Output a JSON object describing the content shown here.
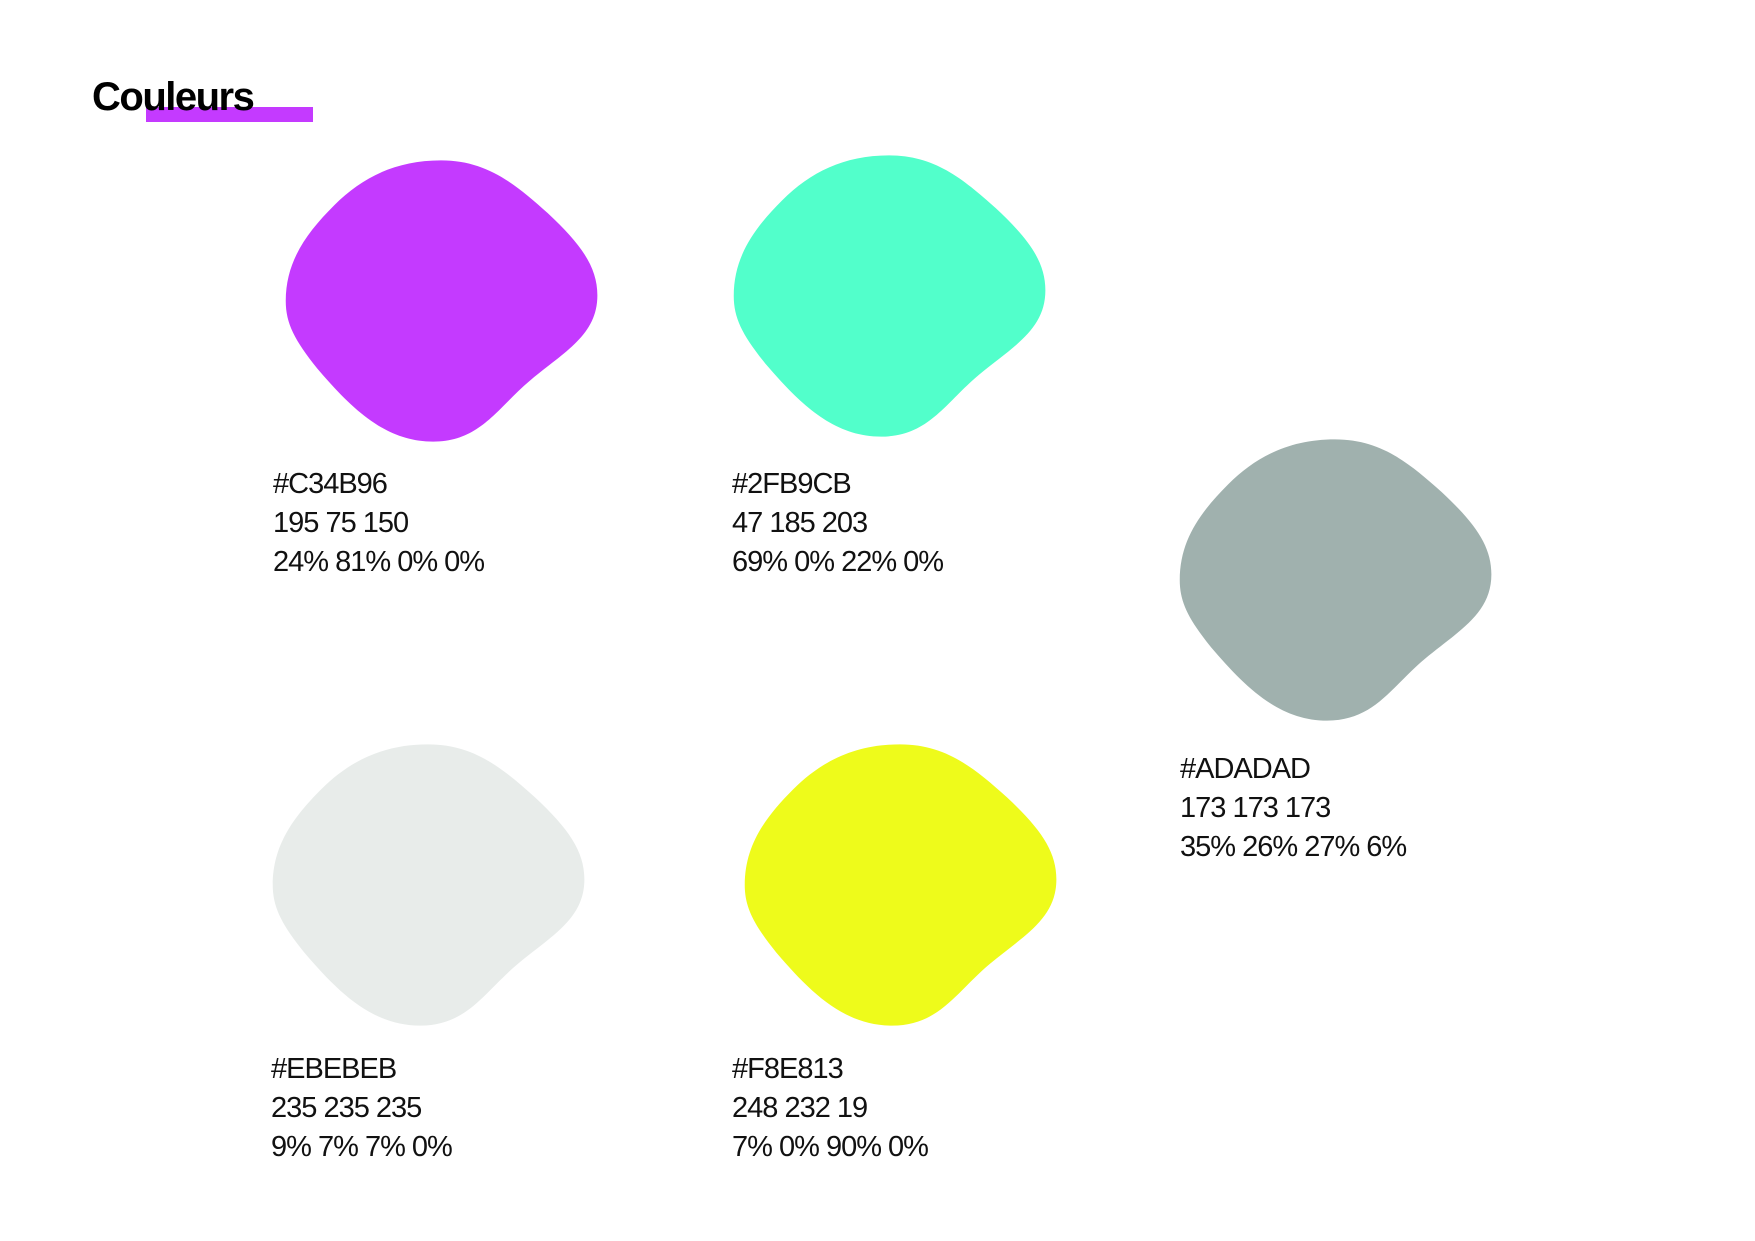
{
  "title": "Couleurs",
  "swatches": [
    {
      "hex": "#C34B96",
      "rgb": "195 75 150",
      "cmyk": "24% 81% 0% 0%"
    },
    {
      "hex": "#2FB9CB",
      "rgb": "47 185 203",
      "cmyk": "69% 0% 22% 0%"
    },
    {
      "hex": "#ADADAD",
      "rgb": "173 173 173",
      "cmyk": "35% 26% 27% 6%"
    },
    {
      "hex": "#EBEBEB",
      "rgb": "235 235 235",
      "cmyk": "9% 7% 7% 0%"
    },
    {
      "hex": "#F8E813",
      "rgb": "248 232 19",
      "cmyk": "7% 0% 90% 0%"
    }
  ]
}
